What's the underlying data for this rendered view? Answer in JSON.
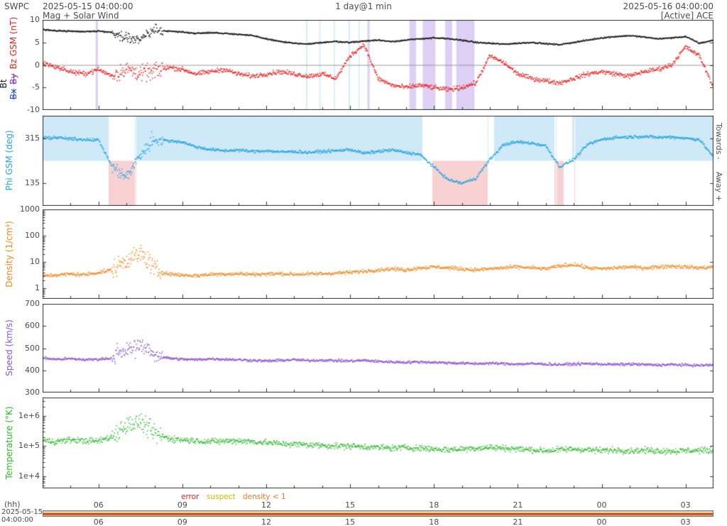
{
  "header": {
    "app": "SWPC",
    "start_datetime": "2025-05-15 04:00:00",
    "subtitle": "Mag + Solar Wind",
    "resolution": "1 day@1 min",
    "end_datetime": "2025-05-16 04:00:00",
    "source": "[Active] ACE"
  },
  "labels": {
    "mag": {
      "bt": "Bt",
      "bz": "Bz GSM (nT)",
      "bx": "Bx",
      "by": "By"
    },
    "phi": "Phi GSM (deg)",
    "density": "Density (1/cm³)",
    "speed": "Speed (km/s)",
    "temperature": "Temperature (°K)",
    "towards": "Towards -",
    "away": "Away +"
  },
  "legend": {
    "error": "error",
    "suspect": "suspect",
    "density_lt1": "density < 1"
  },
  "footer": {
    "hh": "(hh)",
    "start_date": "2025-05-15",
    "start_time": "04:00:00"
  },
  "colors": {
    "bt": "#1a1a1a",
    "bz": "#e62222",
    "bx": "#2b50c8",
    "by": "#8a33bb",
    "phi": "#25a5dc",
    "density": "#f08a20",
    "speed": "#8a55cc",
    "temperature": "#2eb82e",
    "towards_shade": "#cfe9f8",
    "away_shade": "#f8d2d2",
    "band_purple": "#ddd0f4",
    "band_blue": "#d4ebf9",
    "error": "#dd2222",
    "suspect": "#d4b400",
    "density_lt1": "#ee7722",
    "axis": "#333333",
    "zero_line": "#999999",
    "strip1": "#e8cf8e",
    "strip2": "#c0392b",
    "strip3": "#df9a55"
  },
  "chart_data": {
    "type": "scatter",
    "x_unit": "hours",
    "x_range": [
      4,
      28
    ],
    "x_start": "2025-05-15 04:00:00",
    "x_end": "2025-05-16 04:00:00",
    "burst_window": [
      6.5,
      8.3
    ],
    "x_ticks": [
      {
        "h": 6,
        "label": "06"
      },
      {
        "h": 9,
        "label": "09"
      },
      {
        "h": 12,
        "label": "12"
      },
      {
        "h": 15,
        "label": "15"
      },
      {
        "h": 18,
        "label": "18"
      },
      {
        "h": 21,
        "label": "21"
      },
      {
        "h": 24,
        "label": "00"
      },
      {
        "h": 27,
        "label": "03"
      }
    ],
    "x_hours": [
      4,
      4.5,
      5,
      5.5,
      6,
      6.5,
      7,
      7.5,
      8,
      8.5,
      9,
      9.5,
      10,
      10.5,
      11,
      11.5,
      12,
      12.5,
      13,
      13.5,
      14,
      14.5,
      15,
      15.5,
      16,
      16.5,
      17,
      17.5,
      18,
      18.5,
      19,
      19.5,
      20,
      20.5,
      21,
      21.5,
      22,
      22.5,
      23,
      23.5,
      24,
      24.5,
      25,
      25.5,
      26,
      26.5,
      27,
      27.5,
      28
    ],
    "panels": [
      {
        "key": "mag",
        "scale": "linear",
        "ymin": -10,
        "ymax": 10,
        "zero_line": true,
        "yticks": [
          {
            "v": 10,
            "t": "10"
          },
          {
            "v": 5,
            "t": "5"
          },
          {
            "v": 0,
            "t": "0"
          },
          {
            "v": -5,
            "t": "-5"
          },
          {
            "v": -10,
            "t": "-10"
          }
        ],
        "bands": [
          {
            "from": 5.9,
            "to": 5.98,
            "color_key": "band_purple"
          },
          {
            "from": 13.42,
            "to": 13.47,
            "color_key": "band_blue"
          },
          {
            "from": 13.9,
            "to": 13.94,
            "color_key": "band_blue"
          },
          {
            "from": 14.42,
            "to": 14.46,
            "color_key": "band_blue"
          },
          {
            "from": 14.95,
            "to": 15.0,
            "color_key": "band_blue"
          },
          {
            "from": 15.3,
            "to": 15.34,
            "color_key": "band_blue"
          },
          {
            "from": 15.62,
            "to": 15.7,
            "color_key": "band_purple"
          },
          {
            "from": 17.12,
            "to": 17.36,
            "color_key": "band_purple"
          },
          {
            "from": 17.6,
            "to": 18.05,
            "color_key": "band_purple"
          },
          {
            "from": 18.4,
            "to": 18.65,
            "color_key": "band_purple"
          },
          {
            "from": 18.8,
            "to": 19.45,
            "color_key": "band_purple"
          }
        ],
        "series": [
          {
            "name": "Bt",
            "color_key": "bt",
            "noise": 0.15,
            "burst_mult": 7,
            "values": [
              7.8,
              7.6,
              7.5,
              7.4,
              7.5,
              7.2,
              6.0,
              5.5,
              7.8,
              7.5,
              7.3,
              7.0,
              7.2,
              7.0,
              6.8,
              6.5,
              5.8,
              5.2,
              4.8,
              4.6,
              5.0,
              5.2,
              5.0,
              5.3,
              5.5,
              5.2,
              5.5,
              5.8,
              6.0,
              5.8,
              5.5,
              5.0,
              4.8,
              4.6,
              4.8,
              5.0,
              4.7,
              4.5,
              5.0,
              5.5,
              6.0,
              6.3,
              6.5,
              6.2,
              5.8,
              6.0,
              6.3,
              4.8,
              5.5
            ]
          },
          {
            "name": "Bz GSM",
            "color_key": "bz",
            "noise": 0.5,
            "burst_mult": 3.5,
            "values": [
              0.5,
              -0.5,
              -1.5,
              -2.0,
              -1.0,
              -2.5,
              -1.0,
              -2.0,
              -1.5,
              -0.5,
              -1.0,
              -2.0,
              -1.5,
              -1.0,
              -2.0,
              -2.5,
              -2.0,
              -1.5,
              -2.0,
              -2.5,
              -2.0,
              -3.0,
              2.0,
              4.5,
              -3.0,
              -4.5,
              -5.0,
              -4.5,
              -5.0,
              -5.5,
              -5.0,
              -4.0,
              2.0,
              0.5,
              -2.0,
              -3.0,
              -3.5,
              -4.0,
              -3.0,
              -2.0,
              -1.5,
              -2.0,
              -2.5,
              -1.5,
              -1.0,
              0.0,
              4.0,
              2.0,
              -5.0
            ]
          }
        ]
      },
      {
        "key": "phi",
        "scale": "linear",
        "ymin": 45,
        "ymax": 405,
        "yticks": [
          {
            "v": 315,
            "t": "315"
          },
          {
            "v": 135,
            "t": "135"
          }
        ],
        "sector": {
          "threshold": 225,
          "gaps": [
            [
              17.6,
              17.95
            ],
            [
              19.95,
              20.15
            ],
            [
              22.65,
              22.95
            ]
          ]
        },
        "series": [
          {
            "name": "Phi GSM",
            "color_key": "phi",
            "noise": 6,
            "burst_mult": 4,
            "values": [
              315,
              318,
              312,
              310,
              308,
              200,
              160,
              250,
              310,
              305,
              300,
              280,
              270,
              265,
              268,
              262,
              265,
              260,
              262,
              258,
              262,
              265,
              270,
              255,
              262,
              268,
              258,
              250,
              200,
              150,
              135,
              155,
              230,
              290,
              300,
              295,
              285,
              200,
              230,
              290,
              310,
              318,
              320,
              322,
              318,
              320,
              315,
              310,
              240
            ]
          }
        ]
      },
      {
        "key": "density",
        "scale": "log",
        "ymin": 0.4,
        "ymax": 1000,
        "yticks": [
          {
            "v": 1000,
            "t": "1000"
          },
          {
            "v": 100,
            "t": "100"
          },
          {
            "v": 10,
            "t": "10"
          },
          {
            "v": 1,
            "t": "1"
          }
        ],
        "series": [
          {
            "name": "Density",
            "color_key": "density",
            "noise": 0.07,
            "burst_mult": 5,
            "values": [
              3.0,
              3.2,
              3.5,
              3.3,
              4.0,
              5.0,
              12.0,
              20.0,
              5.0,
              3.5,
              3.2,
              3.0,
              3.4,
              3.5,
              3.6,
              3.4,
              3.5,
              3.6,
              3.4,
              3.5,
              3.6,
              3.8,
              4.0,
              4.5,
              5.0,
              5.5,
              5.0,
              6.0,
              6.5,
              6.0,
              5.5,
              5.0,
              5.5,
              6.0,
              6.5,
              6.0,
              5.5,
              7.0,
              8.0,
              6.0,
              5.5,
              6.0,
              6.5,
              6.0,
              6.5,
              7.0,
              6.5,
              6.0,
              6.5
            ]
          }
        ]
      },
      {
        "key": "speed",
        "scale": "linear",
        "ymin": 300,
        "ymax": 700,
        "yticks": [
          {
            "v": 700,
            "t": "700"
          },
          {
            "v": 600,
            "t": "600"
          },
          {
            "v": 500,
            "t": "500"
          },
          {
            "v": 400,
            "t": "400"
          },
          {
            "v": 300,
            "t": "300"
          }
        ],
        "series": [
          {
            "name": "Speed",
            "color_key": "speed",
            "noise": 6,
            "burst_mult": 5,
            "values": [
              455,
              450,
              452,
              448,
              450,
              455,
              490,
              520,
              470,
              455,
              450,
              448,
              452,
              450,
              448,
              445,
              442,
              445,
              448,
              444,
              446,
              444,
              442,
              445,
              440,
              438,
              436,
              438,
              436,
              434,
              432,
              430,
              432,
              430,
              428,
              430,
              428,
              426,
              428,
              430,
              428,
              426,
              428,
              426,
              424,
              426,
              424,
              422,
              425
            ]
          }
        ]
      },
      {
        "key": "temperature",
        "scale": "log",
        "ymin": 4000,
        "ymax": 4000000,
        "yticks": [
          {
            "v": 1000000,
            "t": "1e+6"
          },
          {
            "v": 100000,
            "t": "1e+5"
          },
          {
            "v": 10000,
            "t": "1e+4"
          }
        ],
        "series": [
          {
            "name": "Temperature",
            "color_key": "temperature",
            "noise": 0.1,
            "burst_mult": 3,
            "values": [
              150000,
              140000,
              160000,
              150000,
              145000,
              200000,
              500000,
              600000,
              250000,
              180000,
              160000,
              150000,
              140000,
              145000,
              150000,
              140000,
              130000,
              120000,
              115000,
              110000,
              105000,
              100000,
              100000,
              95000,
              90000,
              85000,
              90000,
              85000,
              80000,
              75000,
              80000,
              85000,
              90000,
              85000,
              80000,
              75000,
              70000,
              75000,
              80000,
              75000,
              70000,
              75000,
              70000,
              72000,
              70000,
              68000,
              70000,
              72000,
              70000
            ]
          }
        ]
      }
    ]
  }
}
